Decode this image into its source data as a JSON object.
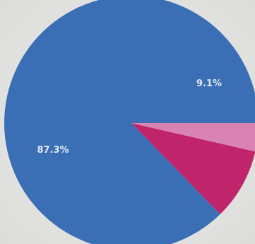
{
  "chart_data": {
    "type": "pie",
    "slices": [
      {
        "value": 87.3,
        "label": "87.3%",
        "color": "#3a6fb5"
      },
      {
        "value": 9.1,
        "label": "9.1%",
        "color": "#c0246a"
      },
      {
        "value": 3.6,
        "label": "",
        "color": "#d883b3"
      }
    ],
    "start_angle_deg": 0,
    "direction": "counterclockwise",
    "legend": "none"
  }
}
